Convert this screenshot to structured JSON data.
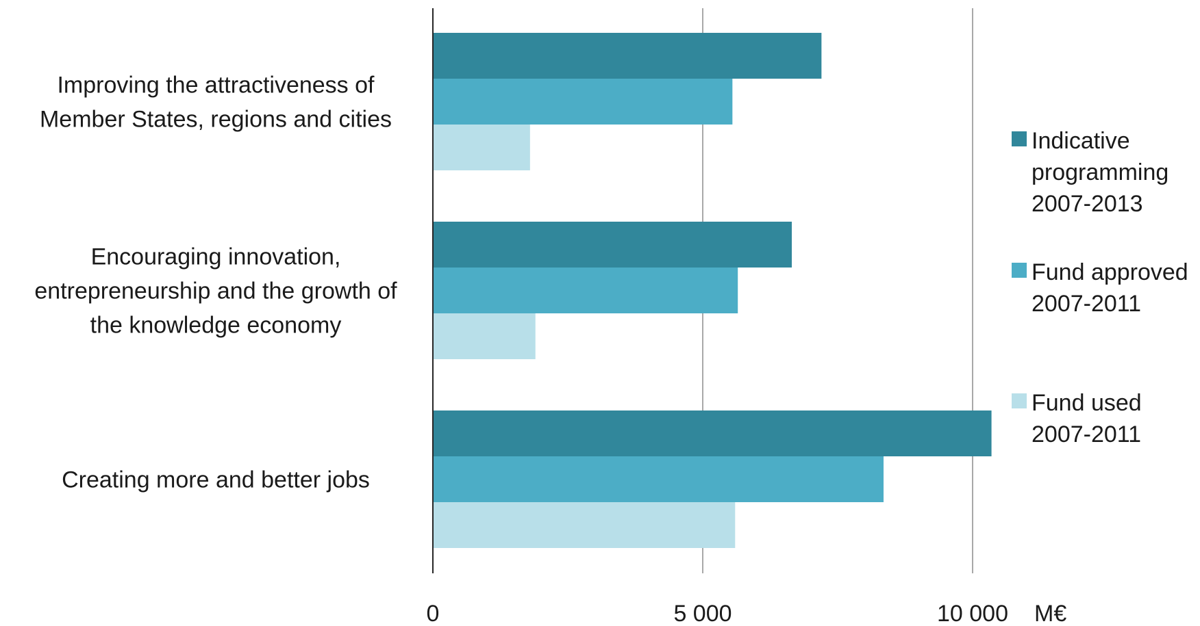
{
  "chart_data": {
    "type": "bar",
    "orientation": "horizontal",
    "categories": [
      [
        "Improving the attractiveness of",
        "Member States, regions and cities"
      ],
      [
        "Encouraging innovation,",
        "entrepreneurship and the growth of",
        "the knowledge economy"
      ],
      [
        "Creating more and better jobs"
      ]
    ],
    "series": [
      {
        "name": "Indicative programming 2007-2013",
        "legend_lines": [
          "Indicative",
          "programming",
          "2007-2013"
        ],
        "color": "#31879b",
        "values": [
          7200,
          6650,
          10350
        ]
      },
      {
        "name": "Fund approved 2007-2011",
        "legend_lines": [
          "Fund approved",
          "2007-2011"
        ],
        "color": "#4cadc6",
        "values": [
          5550,
          5650,
          8350
        ]
      },
      {
        "name": "Fund used 2007-2011",
        "legend_lines": [
          "Fund used",
          "2007-2011"
        ],
        "color": "#b8dfe9",
        "values": [
          1800,
          1900,
          5600
        ]
      }
    ],
    "xticks": [
      {
        "value": 0,
        "label": "0"
      },
      {
        "value": 5000,
        "label": "5 000"
      },
      {
        "value": 10000,
        "label": "10 000"
      }
    ],
    "unit_label": "M€",
    "xlim": [
      0,
      10000
    ],
    "grid": true,
    "legend_position": "right"
  }
}
